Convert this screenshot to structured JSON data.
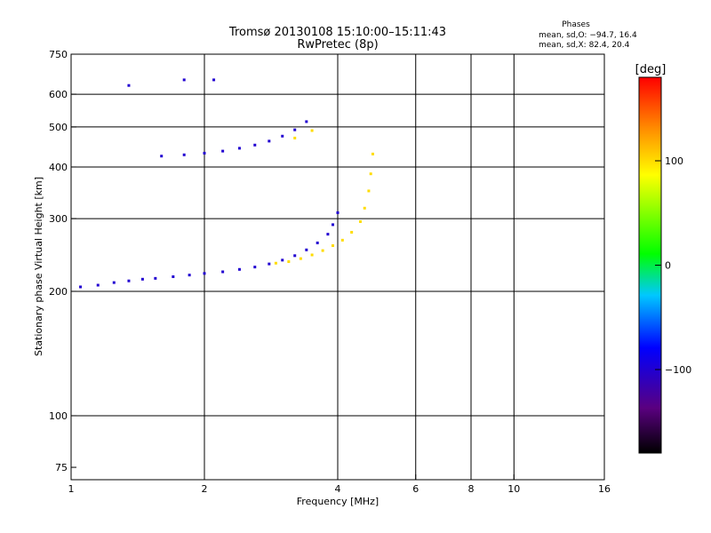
{
  "chart_data": {
    "type": "scatter",
    "title": "Tromsø 20130108 15:10:00–15:11:43",
    "subtitle": "RwPretec (8p)",
    "xlabel": "Frequency [MHz]",
    "ylabel": "Stationary phase Virtual Height [km]",
    "x_scale": "log",
    "y_scale": "log",
    "xlim": [
      1,
      16
    ],
    "ylim": [
      70,
      750
    ],
    "x_ticks": [
      1,
      2,
      4,
      6,
      8,
      10,
      16
    ],
    "y_ticks": [
      75,
      100,
      200,
      300,
      400,
      500,
      600,
      750
    ],
    "x_gridlines": [
      2,
      4,
      6,
      8,
      10
    ],
    "y_gridlines": [
      100,
      200,
      300,
      400,
      500,
      600
    ],
    "stats": {
      "header": "Phases",
      "line1": "mean, sd,O: −94.7, 16.4",
      "line2": "mean, sd,X:  82.4, 20.4"
    },
    "colorbar": {
      "label": "[deg]",
      "range": [
        -180,
        180
      ],
      "ticks": [
        100,
        0,
        -100
      ],
      "tick_labels": [
        "100",
        "0",
        "−100"
      ]
    },
    "series": [
      {
        "values": [
          {
            "x": 1.05,
            "y": 205,
            "phase": -100
          },
          {
            "x": 1.15,
            "y": 207,
            "phase": -100
          },
          {
            "x": 1.25,
            "y": 210,
            "phase": -100
          },
          {
            "x": 1.35,
            "y": 212,
            "phase": -100
          },
          {
            "x": 1.45,
            "y": 214,
            "phase": -100
          },
          {
            "x": 1.55,
            "y": 215,
            "phase": -100
          },
          {
            "x": 1.7,
            "y": 217,
            "phase": -100
          },
          {
            "x": 1.85,
            "y": 219,
            "phase": -100
          },
          {
            "x": 2.0,
            "y": 221,
            "phase": -100
          },
          {
            "x": 2.2,
            "y": 223,
            "phase": -100
          },
          {
            "x": 2.4,
            "y": 226,
            "phase": -100
          },
          {
            "x": 2.6,
            "y": 229,
            "phase": -100
          },
          {
            "x": 2.8,
            "y": 233,
            "phase": -100
          },
          {
            "x": 3.0,
            "y": 238,
            "phase": -100
          },
          {
            "x": 3.2,
            "y": 244,
            "phase": -100
          },
          {
            "x": 3.4,
            "y": 252,
            "phase": -100
          },
          {
            "x": 3.6,
            "y": 262,
            "phase": -100
          },
          {
            "x": 3.8,
            "y": 275,
            "phase": -100
          },
          {
            "x": 3.9,
            "y": 290,
            "phase": -100
          },
          {
            "x": 4.0,
            "y": 310,
            "phase": -100
          },
          {
            "x": 1.6,
            "y": 425,
            "phase": -100
          },
          {
            "x": 1.8,
            "y": 428,
            "phase": -100
          },
          {
            "x": 2.0,
            "y": 432,
            "phase": -100
          },
          {
            "x": 2.2,
            "y": 437,
            "phase": -100
          },
          {
            "x": 2.4,
            "y": 444,
            "phase": -100
          },
          {
            "x": 2.6,
            "y": 452,
            "phase": -100
          },
          {
            "x": 2.8,
            "y": 462,
            "phase": -100
          },
          {
            "x": 3.0,
            "y": 475,
            "phase": -100
          },
          {
            "x": 3.2,
            "y": 492,
            "phase": -100
          },
          {
            "x": 3.4,
            "y": 515,
            "phase": -100
          },
          {
            "x": 1.8,
            "y": 650,
            "phase": -100
          },
          {
            "x": 2.1,
            "y": 650,
            "phase": -100
          },
          {
            "x": 1.35,
            "y": 630,
            "phase": -100
          }
        ]
      },
      {
        "values": [
          {
            "x": 2.9,
            "y": 234,
            "phase": 100
          },
          {
            "x": 3.1,
            "y": 236,
            "phase": 100
          },
          {
            "x": 3.3,
            "y": 240,
            "phase": 100
          },
          {
            "x": 3.5,
            "y": 245,
            "phase": 100
          },
          {
            "x": 3.7,
            "y": 251,
            "phase": 100
          },
          {
            "x": 3.9,
            "y": 258,
            "phase": 100
          },
          {
            "x": 4.1,
            "y": 266,
            "phase": 100
          },
          {
            "x": 4.3,
            "y": 278,
            "phase": 100
          },
          {
            "x": 4.5,
            "y": 295,
            "phase": 100
          },
          {
            "x": 4.6,
            "y": 318,
            "phase": 100
          },
          {
            "x": 4.7,
            "y": 350,
            "phase": 100
          },
          {
            "x": 4.75,
            "y": 385,
            "phase": 100
          },
          {
            "x": 4.8,
            "y": 430,
            "phase": 100
          },
          {
            "x": 3.2,
            "y": 470,
            "phase": 100
          },
          {
            "x": 3.5,
            "y": 490,
            "phase": 100
          }
        ]
      }
    ]
  }
}
